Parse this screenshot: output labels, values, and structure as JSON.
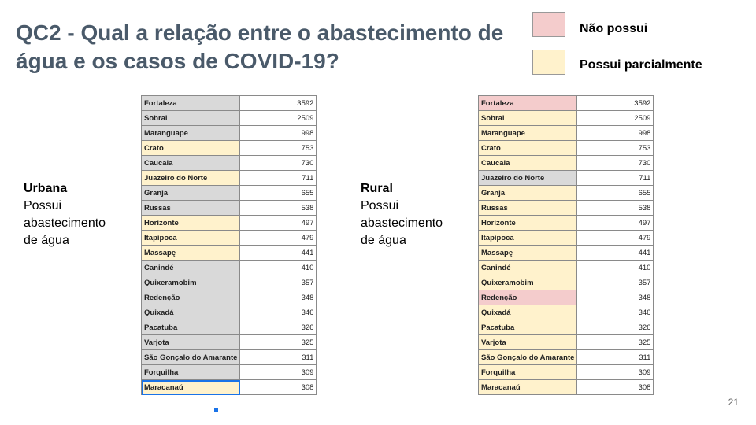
{
  "slide": {
    "title": "QC2 - Qual a relação entre o abastecimento de água e os casos de COVID-19?",
    "page_number": "21"
  },
  "legend": [
    {
      "label": "Não possui",
      "color": "#f4cccc"
    },
    {
      "label": "Possui parcialmente",
      "color": "#fff2cc"
    }
  ],
  "urbana": {
    "heading": "Urbana",
    "text": "Possui\nabastecimento\nde água"
  },
  "rural": {
    "heading": "Rural",
    "text": "Possui\nabastecimento\nde água"
  },
  "cities": [
    {
      "name": "Fortaleza",
      "cases": "3592"
    },
    {
      "name": "Sobral",
      "cases": "2509"
    },
    {
      "name": "Maranguape",
      "cases": "998"
    },
    {
      "name": "Crato",
      "cases": "753"
    },
    {
      "name": "Caucaia",
      "cases": "730"
    },
    {
      "name": "Juazeiro do Norte",
      "cases": "711"
    },
    {
      "name": "Granja",
      "cases": "655"
    },
    {
      "name": "Russas",
      "cases": "538"
    },
    {
      "name": "Horizonte",
      "cases": "497"
    },
    {
      "name": "Itapipoca",
      "cases": "479"
    },
    {
      "name": "Massapę",
      "cases": "441"
    },
    {
      "name": "Canindé",
      "cases": "410"
    },
    {
      "name": "Quixeramobim",
      "cases": "357"
    },
    {
      "name": "Redenção",
      "cases": "348"
    },
    {
      "name": "Quixadá",
      "cases": "346"
    },
    {
      "name": "Pacatuba",
      "cases": "326"
    },
    {
      "name": "Varjota",
      "cases": "325"
    },
    {
      "name": "São Gonçalo do Amarante",
      "cases": "311"
    },
    {
      "name": "Forquilha",
      "cases": "309"
    },
    {
      "name": "Maracanaú",
      "cases": "308"
    }
  ],
  "urbana_status": [
    "grey",
    "grey",
    "grey",
    "yellow",
    "grey",
    "yellow",
    "grey",
    "grey",
    "yellow",
    "yellow",
    "yellow",
    "grey",
    "grey",
    "grey",
    "grey",
    "grey",
    "grey",
    "grey",
    "grey",
    "yellow"
  ],
  "rural_status": [
    "pink",
    "yellow",
    "yellow",
    "yellow",
    "yellow",
    "grey",
    "yellow",
    "yellow",
    "yellow",
    "yellow",
    "yellow",
    "yellow",
    "yellow",
    "pink",
    "yellow",
    "yellow",
    "yellow",
    "yellow",
    "yellow",
    "yellow"
  ]
}
